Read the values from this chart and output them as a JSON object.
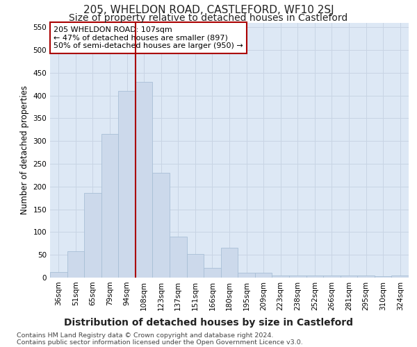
{
  "title": "205, WHELDON ROAD, CASTLEFORD, WF10 2SJ",
  "subtitle": "Size of property relative to detached houses in Castleford",
  "xlabel": "Distribution of detached houses by size in Castleford",
  "ylabel": "Number of detached properties",
  "categories": [
    "36sqm",
    "51sqm",
    "65sqm",
    "79sqm",
    "94sqm",
    "108sqm",
    "123sqm",
    "137sqm",
    "151sqm",
    "166sqm",
    "180sqm",
    "195sqm",
    "209sqm",
    "223sqm",
    "238sqm",
    "252sqm",
    "266sqm",
    "281sqm",
    "295sqm",
    "310sqm",
    "324sqm"
  ],
  "values": [
    12,
    58,
    186,
    315,
    410,
    430,
    230,
    90,
    52,
    22,
    65,
    10,
    10,
    5,
    5,
    5,
    5,
    5,
    5,
    3,
    5
  ],
  "bar_color": "#ccd9eb",
  "bar_edgecolor": "#a8bfd6",
  "vline_index": 5,
  "vline_color": "#aa0000",
  "annotation_text": "205 WHELDON ROAD: 107sqm\n← 47% of detached houses are smaller (897)\n50% of semi-detached houses are larger (950) →",
  "annotation_box_edgecolor": "#aa0000",
  "annotation_box_facecolor": "#ffffff",
  "ylim": [
    0,
    560
  ],
  "yticks": [
    0,
    50,
    100,
    150,
    200,
    250,
    300,
    350,
    400,
    450,
    500,
    550
  ],
  "grid_color": "#c8d4e4",
  "background_color": "#ffffff",
  "plot_bg_color": "#dde8f5",
  "footnote1": "Contains HM Land Registry data © Crown copyright and database right 2024.",
  "footnote2": "Contains public sector information licensed under the Open Government Licence v3.0.",
  "title_fontsize": 11,
  "subtitle_fontsize": 10,
  "tick_fontsize": 7.5,
  "ylabel_fontsize": 8.5,
  "xlabel_fontsize": 10,
  "footnote_fontsize": 6.8
}
